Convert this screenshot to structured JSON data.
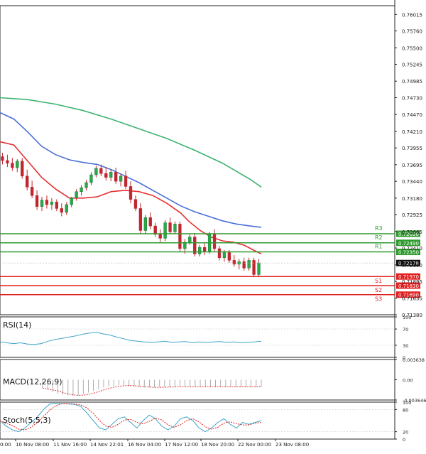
{
  "price_axis": {
    "ticks": [
      "0.76015",
      "0.75760",
      "0.75500",
      "0.75245",
      "0.74985",
      "0.74730",
      "0.74470",
      "0.74210",
      "0.73955",
      "0.73695",
      "0.73440",
      "0.73180",
      "0.72925",
      "0.72665",
      "0.72410",
      "0.72150",
      "0.71895",
      "0.71635",
      "0.71380"
    ]
  },
  "levels": [
    {
      "name": "R3",
      "value": 0.7263,
      "label": "0.72630",
      "color": "#2e9b2e"
    },
    {
      "name": "R2",
      "value": 0.7249,
      "label": "0.72490",
      "color": "#2e9b2e"
    },
    {
      "name": "R1",
      "value": 0.7235,
      "label": "0.72350",
      "color": "#2e9b2e"
    },
    {
      "name": "S1",
      "value": 0.7197,
      "label": "0.71970",
      "color": "#e02020"
    },
    {
      "name": "S2",
      "value": 0.7183,
      "label": "0.71830",
      "color": "#e02020"
    },
    {
      "name": "S3",
      "value": 0.7169,
      "label": "0.71690",
      "color": "#e02020"
    }
  ],
  "current_price": {
    "label": "0.72178",
    "value": 0.72178
  },
  "x_axis": {
    "ticks": [
      "10 Nov 08:00",
      "11 Nov 16:00",
      "14 Nov 22:01",
      "16 Nov 04:00",
      "17 Nov 12:00",
      "18 Nov 20:00",
      "22 Nov 00:00",
      "23 Nov 08:00"
    ],
    "first_partial": "0:00"
  },
  "panels": {
    "rsi": {
      "label": "RSI(14)",
      "ticks": [
        "100",
        "70",
        "30",
        "0"
      ]
    },
    "macd": {
      "label": "MACD(12,26,9)",
      "ticks": [
        "0.003638",
        "0.00",
        "-0.003646"
      ]
    },
    "stoch": {
      "label": "Stoch(5,5,3)",
      "ticks": [
        "100",
        "80",
        "20",
        "0"
      ]
    }
  },
  "colors": {
    "ma_fast": "#e53030",
    "ma_mid": "#4a6fd6",
    "ma_slow": "#3cb371",
    "candle": "#c0262f",
    "indicator": "#3fa4c9",
    "signal": "#e02020"
  },
  "chart_data": [
    {
      "type": "candlestick",
      "title": "",
      "xlabel": "",
      "ylabel": "",
      "ylim": [
        0.7138,
        0.7615
      ],
      "series_ma_slow": [
        [
          0,
          0.7473
        ],
        [
          10,
          0.747
        ],
        [
          20,
          0.7463
        ],
        [
          30,
          0.7453
        ],
        [
          40,
          0.744
        ],
        [
          50,
          0.7425
        ],
        [
          60,
          0.741
        ],
        [
          70,
          0.7392
        ],
        [
          80,
          0.7372
        ],
        [
          90,
          0.7347
        ],
        [
          94,
          0.7335
        ]
      ],
      "series_ma_mid": [
        [
          0,
          0.745
        ],
        [
          5,
          0.744
        ],
        [
          10,
          0.742
        ],
        [
          15,
          0.7398
        ],
        [
          20,
          0.7385
        ],
        [
          25,
          0.7377
        ],
        [
          30,
          0.7373
        ],
        [
          35,
          0.737
        ],
        [
          40,
          0.7362
        ],
        [
          45,
          0.7352
        ],
        [
          50,
          0.7342
        ],
        [
          55,
          0.733
        ],
        [
          60,
          0.7318
        ],
        [
          65,
          0.7306
        ],
        [
          70,
          0.7297
        ],
        [
          75,
          0.729
        ],
        [
          80,
          0.7283
        ],
        [
          85,
          0.7278
        ],
        [
          90,
          0.7275
        ],
        [
          94,
          0.7273
        ]
      ],
      "series_ma_fast": [
        [
          0,
          0.7405
        ],
        [
          5,
          0.74
        ],
        [
          10,
          0.7375
        ],
        [
          15,
          0.735
        ],
        [
          20,
          0.7332
        ],
        [
          25,
          0.7318
        ],
        [
          30,
          0.7318
        ],
        [
          35,
          0.732
        ],
        [
          40,
          0.7328
        ],
        [
          45,
          0.733
        ],
        [
          50,
          0.7328
        ],
        [
          55,
          0.7322
        ],
        [
          60,
          0.731
        ],
        [
          65,
          0.7295
        ],
        [
          68,
          0.7282
        ],
        [
          72,
          0.7268
        ],
        [
          76,
          0.7258
        ],
        [
          80,
          0.7252
        ],
        [
          84,
          0.725
        ],
        [
          88,
          0.7245
        ],
        [
          92,
          0.7236
        ],
        [
          94,
          0.7232
        ]
      ],
      "candles": [
        [
          0.7382,
          0.7388,
          0.737,
          0.7376
        ],
        [
          0.7376,
          0.7385,
          0.7366,
          0.7372
        ],
        [
          0.7372,
          0.738,
          0.736,
          0.7365
        ],
        [
          0.7365,
          0.7378,
          0.7358,
          0.7375
        ],
        [
          0.7375,
          0.738,
          0.7348,
          0.7352
        ],
        [
          0.7352,
          0.7362,
          0.733,
          0.7335
        ],
        [
          0.7335,
          0.7345,
          0.7318,
          0.7322
        ],
        [
          0.7322,
          0.733,
          0.73,
          0.7305
        ],
        [
          0.7305,
          0.732,
          0.7298,
          0.7315
        ],
        [
          0.7315,
          0.7322,
          0.7302,
          0.7308
        ],
        [
          0.7308,
          0.7318,
          0.73,
          0.7312
        ],
        [
          0.7312,
          0.7316,
          0.7298,
          0.7302
        ],
        [
          0.7302,
          0.731,
          0.729,
          0.7296
        ],
        [
          0.7296,
          0.7312,
          0.7292,
          0.7308
        ],
        [
          0.7308,
          0.732,
          0.7304,
          0.7318
        ],
        [
          0.7318,
          0.7332,
          0.7314,
          0.7328
        ],
        [
          0.7328,
          0.7338,
          0.7322,
          0.7334
        ],
        [
          0.7334,
          0.7346,
          0.733,
          0.7342
        ],
        [
          0.7342,
          0.7358,
          0.7338,
          0.7354
        ],
        [
          0.7354,
          0.7368,
          0.735,
          0.7364
        ],
        [
          0.7364,
          0.737,
          0.7352,
          0.7356
        ],
        [
          0.7356,
          0.7366,
          0.7345,
          0.735
        ],
        [
          0.735,
          0.7362,
          0.7344,
          0.7358
        ],
        [
          0.7358,
          0.7365,
          0.734,
          0.7344
        ],
        [
          0.7344,
          0.7356,
          0.7336,
          0.7352
        ],
        [
          0.7352,
          0.736,
          0.7332,
          0.7336
        ],
        [
          0.7336,
          0.7344,
          0.731,
          0.7316
        ],
        [
          0.7316,
          0.7322,
          0.7298,
          0.7302
        ],
        [
          0.7302,
          0.731,
          0.7262,
          0.7268
        ],
        [
          0.7268,
          0.7292,
          0.7262,
          0.7288
        ],
        [
          0.7288,
          0.7296,
          0.727,
          0.7275
        ],
        [
          0.7275,
          0.728,
          0.7258,
          0.7262
        ],
        [
          0.7262,
          0.727,
          0.725,
          0.7256
        ],
        [
          0.7256,
          0.7284,
          0.7252,
          0.728
        ],
        [
          0.728,
          0.7288,
          0.7262,
          0.7266
        ],
        [
          0.7266,
          0.7282,
          0.7262,
          0.7278
        ],
        [
          0.7278,
          0.7282,
          0.7236,
          0.724
        ],
        [
          0.724,
          0.7255,
          0.7232,
          0.725
        ],
        [
          0.725,
          0.7262,
          0.7246,
          0.7258
        ],
        [
          0.7258,
          0.7264,
          0.7228,
          0.7232
        ],
        [
          0.7232,
          0.7246,
          0.7228,
          0.7242
        ],
        [
          0.7242,
          0.725,
          0.723,
          0.7236
        ],
        [
          0.7236,
          0.7266,
          0.7232,
          0.7262
        ],
        [
          0.7262,
          0.727,
          0.7236,
          0.724
        ],
        [
          0.724,
          0.7244,
          0.7222,
          0.7226
        ],
        [
          0.7226,
          0.7238,
          0.722,
          0.7234
        ],
        [
          0.7234,
          0.7238,
          0.7218,
          0.7222
        ],
        [
          0.7222,
          0.723,
          0.7212,
          0.7216
        ],
        [
          0.7216,
          0.7224,
          0.7208,
          0.722
        ],
        [
          0.722,
          0.7226,
          0.7206,
          0.721
        ],
        [
          0.721,
          0.7226,
          0.7206,
          0.7222
        ],
        [
          0.7222,
          0.7226,
          0.7196,
          0.72
        ],
        [
          0.72,
          0.7224,
          0.7196,
          0.7218
        ]
      ]
    },
    {
      "type": "line",
      "title": "",
      "xlabel": "",
      "ylabel": "",
      "ylim": [
        0,
        100
      ],
      "series": [
        {
          "name": "RSI(14)",
          "values": [
            38,
            36,
            34,
            36,
            33,
            32,
            34,
            40,
            44,
            47,
            50,
            53,
            57,
            60,
            62,
            58,
            55,
            50,
            46,
            42,
            40,
            38,
            37,
            38,
            40,
            37,
            38,
            39,
            36,
            38,
            37,
            38,
            39,
            37,
            38,
            36,
            37,
            38,
            40
          ]
        }
      ]
    },
    {
      "type": "bar",
      "title": "",
      "xlabel": "",
      "ylabel": "",
      "ylim": [
        -0.003646,
        0.003638
      ],
      "series": [
        {
          "name": "MACD(12,26,9)",
          "values": [
            -0.0015,
            -0.0018,
            -0.0022,
            -0.0025,
            -0.0027,
            -0.0028,
            -0.0029,
            -0.0028,
            -0.0026,
            -0.0023,
            -0.002,
            -0.0017,
            -0.0014,
            -0.0012,
            -0.0011,
            -0.001,
            -0.001,
            -0.0011,
            -0.0012,
            -0.0013,
            -0.0014,
            -0.0014,
            -0.0014,
            -0.0013,
            -0.0013,
            -0.0013,
            -0.0013,
            -0.0013,
            -0.0013,
            -0.0013,
            -0.0013,
            -0.0013,
            -0.0013,
            -0.0013,
            -0.0013,
            -0.0013,
            -0.0013,
            -0.0013,
            -0.0013,
            -0.0013,
            -0.0013,
            -0.0013,
            -0.0013,
            -0.0013
          ]
        }
      ]
    },
    {
      "type": "line",
      "title": "",
      "xlabel": "",
      "ylabel": "",
      "ylim": [
        0,
        100
      ],
      "series": [
        {
          "name": "Stoch(5,5,3)",
          "values": [
            50,
            35,
            25,
            20,
            30,
            45,
            60,
            80,
            95,
            97,
            96,
            95,
            94,
            88,
            70,
            50,
            30,
            25,
            40,
            55,
            60,
            45,
            30,
            50,
            65,
            55,
            35,
            25,
            35,
            55,
            60,
            50,
            30,
            20,
            30,
            45,
            55,
            40,
            30,
            45,
            40,
            45,
            50
          ]
        }
      ]
    }
  ]
}
